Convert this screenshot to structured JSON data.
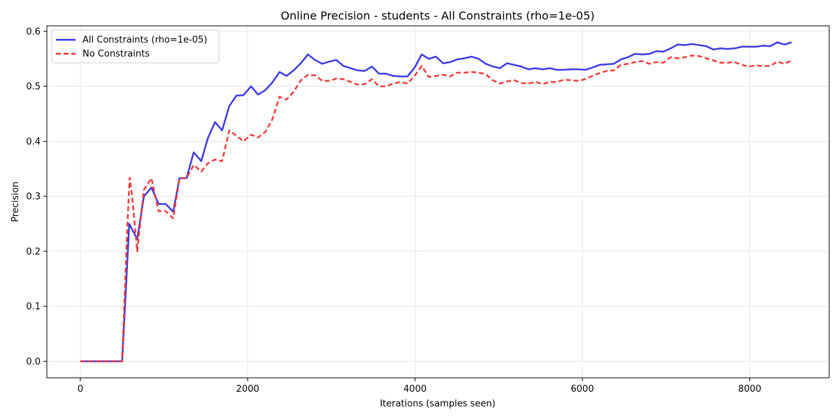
{
  "chart_data": {
    "type": "line",
    "title": "Online Precision - students - All Constraints (rho=1e-05)",
    "xlabel": "Iterations (samples seen)",
    "ylabel": "Precision",
    "xlim": [
      -400,
      8950
    ],
    "ylim": [
      -0.03,
      0.61
    ],
    "xticks": [
      0,
      2000,
      4000,
      6000,
      8000
    ],
    "yticks": [
      0.0,
      0.1,
      0.2,
      0.3,
      0.4,
      0.5,
      0.6
    ],
    "xtick_labels": [
      "0",
      "2000",
      "4000",
      "6000",
      "8000"
    ],
    "ytick_labels": [
      "0.0",
      "0.1",
      "0.2",
      "0.3",
      "0.4",
      "0.5",
      "0.6"
    ],
    "grid": true,
    "legend_position": "top-left",
    "series": [
      {
        "name": "All Constraints (rho=1e-05)",
        "color": "#3333dd",
        "style": "solid",
        "points": [
          [
            0,
            0
          ],
          [
            100,
            0
          ],
          [
            200,
            0
          ],
          [
            300,
            0
          ],
          [
            400,
            0
          ],
          [
            500,
            0
          ],
          [
            585,
            0.25
          ],
          [
            680,
            0.222
          ],
          [
            760,
            0.3
          ],
          [
            850,
            0.316
          ],
          [
            935,
            0.286
          ],
          [
            1020,
            0.286
          ],
          [
            1110,
            0.272
          ],
          [
            1185,
            0.333
          ],
          [
            1270,
            0.333
          ],
          [
            1355,
            0.38
          ],
          [
            1445,
            0.364
          ],
          [
            1525,
            0.406
          ],
          [
            1610,
            0.435
          ],
          [
            1695,
            0.42
          ],
          [
            1780,
            0.464
          ],
          [
            1865,
            0.483
          ],
          [
            1950,
            0.484
          ],
          [
            2040,
            0.5
          ],
          [
            2125,
            0.485
          ],
          [
            2210,
            0.493
          ],
          [
            2295,
            0.507
          ],
          [
            2380,
            0.526
          ],
          [
            2465,
            0.519
          ],
          [
            2550,
            0.529
          ],
          [
            2635,
            0.542
          ],
          [
            2720,
            0.558
          ],
          [
            2805,
            0.548
          ],
          [
            2890,
            0.541
          ],
          [
            2975,
            0.545
          ],
          [
            3060,
            0.548
          ],
          [
            3145,
            0.537
          ],
          [
            3230,
            0.533
          ],
          [
            3315,
            0.529
          ],
          [
            3400,
            0.528
          ],
          [
            3485,
            0.536
          ],
          [
            3570,
            0.523
          ],
          [
            3655,
            0.523
          ],
          [
            3740,
            0.519
          ],
          [
            3825,
            0.518
          ],
          [
            3910,
            0.518
          ],
          [
            3995,
            0.534
          ],
          [
            4080,
            0.558
          ],
          [
            4165,
            0.55
          ],
          [
            4250,
            0.554
          ],
          [
            4335,
            0.542
          ],
          [
            4420,
            0.544
          ],
          [
            4505,
            0.549
          ],
          [
            4590,
            0.551
          ],
          [
            4675,
            0.554
          ],
          [
            4760,
            0.55
          ],
          [
            4845,
            0.541
          ],
          [
            4930,
            0.536
          ],
          [
            5015,
            0.533
          ],
          [
            5100,
            0.542
          ],
          [
            5185,
            0.539
          ],
          [
            5270,
            0.536
          ],
          [
            5355,
            0.531
          ],
          [
            5440,
            0.533
          ],
          [
            5525,
            0.531
          ],
          [
            5610,
            0.533
          ],
          [
            5695,
            0.53
          ],
          [
            5780,
            0.53
          ],
          [
            5865,
            0.531
          ],
          [
            5950,
            0.531
          ],
          [
            6035,
            0.53
          ],
          [
            6120,
            0.534
          ],
          [
            6205,
            0.539
          ],
          [
            6290,
            0.54
          ],
          [
            6375,
            0.541
          ],
          [
            6460,
            0.549
          ],
          [
            6545,
            0.553
          ],
          [
            6630,
            0.559
          ],
          [
            6715,
            0.558
          ],
          [
            6800,
            0.559
          ],
          [
            6885,
            0.564
          ],
          [
            6970,
            0.563
          ],
          [
            7055,
            0.569
          ],
          [
            7140,
            0.576
          ],
          [
            7225,
            0.575
          ],
          [
            7310,
            0.577
          ],
          [
            7395,
            0.575
          ],
          [
            7480,
            0.573
          ],
          [
            7565,
            0.567
          ],
          [
            7650,
            0.569
          ],
          [
            7735,
            0.568
          ],
          [
            7820,
            0.569
          ],
          [
            7905,
            0.572
          ],
          [
            7990,
            0.572
          ],
          [
            8075,
            0.572
          ],
          [
            8160,
            0.574
          ],
          [
            8245,
            0.573
          ],
          [
            8330,
            0.58
          ],
          [
            8415,
            0.576
          ],
          [
            8500,
            0.58
          ]
        ]
      },
      {
        "name": "No Constraints",
        "color": "#ee3333",
        "style": "dashed",
        "points": [
          [
            0,
            0
          ],
          [
            100,
            0
          ],
          [
            200,
            0
          ],
          [
            300,
            0
          ],
          [
            400,
            0
          ],
          [
            500,
            0
          ],
          [
            560,
            0.24
          ],
          [
            590,
            0.334
          ],
          [
            620,
            0.3
          ],
          [
            680,
            0.2
          ],
          [
            760,
            0.312
          ],
          [
            850,
            0.333
          ],
          [
            935,
            0.273
          ],
          [
            1020,
            0.273
          ],
          [
            1110,
            0.26
          ],
          [
            1185,
            0.333
          ],
          [
            1270,
            0.333
          ],
          [
            1355,
            0.357
          ],
          [
            1445,
            0.345
          ],
          [
            1525,
            0.36
          ],
          [
            1610,
            0.367
          ],
          [
            1695,
            0.364
          ],
          [
            1780,
            0.42
          ],
          [
            1865,
            0.41
          ],
          [
            1950,
            0.4
          ],
          [
            2040,
            0.412
          ],
          [
            2125,
            0.407
          ],
          [
            2210,
            0.417
          ],
          [
            2295,
            0.44
          ],
          [
            2380,
            0.481
          ],
          [
            2465,
            0.476
          ],
          [
            2550,
            0.49
          ],
          [
            2635,
            0.511
          ],
          [
            2720,
            0.521
          ],
          [
            2805,
            0.52
          ],
          [
            2890,
            0.51
          ],
          [
            2975,
            0.51
          ],
          [
            3060,
            0.514
          ],
          [
            3145,
            0.513
          ],
          [
            3230,
            0.508
          ],
          [
            3315,
            0.503
          ],
          [
            3400,
            0.504
          ],
          [
            3485,
            0.513
          ],
          [
            3570,
            0.5
          ],
          [
            3655,
            0.5
          ],
          [
            3740,
            0.505
          ],
          [
            3825,
            0.508
          ],
          [
            3910,
            0.505
          ],
          [
            3995,
            0.519
          ],
          [
            4080,
            0.537
          ],
          [
            4165,
            0.517
          ],
          [
            4250,
            0.519
          ],
          [
            4335,
            0.521
          ],
          [
            4420,
            0.518
          ],
          [
            4505,
            0.525
          ],
          [
            4590,
            0.525
          ],
          [
            4675,
            0.526
          ],
          [
            4760,
            0.525
          ],
          [
            4845,
            0.522
          ],
          [
            4930,
            0.511
          ],
          [
            5015,
            0.505
          ],
          [
            5100,
            0.509
          ],
          [
            5185,
            0.511
          ],
          [
            5270,
            0.506
          ],
          [
            5355,
            0.505
          ],
          [
            5440,
            0.508
          ],
          [
            5525,
            0.504
          ],
          [
            5610,
            0.508
          ],
          [
            5695,
            0.508
          ],
          [
            5780,
            0.512
          ],
          [
            5865,
            0.511
          ],
          [
            5950,
            0.51
          ],
          [
            6035,
            0.513
          ],
          [
            6120,
            0.519
          ],
          [
            6205,
            0.524
          ],
          [
            6290,
            0.528
          ],
          [
            6375,
            0.529
          ],
          [
            6460,
            0.539
          ],
          [
            6545,
            0.541
          ],
          [
            6630,
            0.544
          ],
          [
            6715,
            0.546
          ],
          [
            6800,
            0.541
          ],
          [
            6885,
            0.544
          ],
          [
            6970,
            0.543
          ],
          [
            7055,
            0.553
          ],
          [
            7140,
            0.551
          ],
          [
            7225,
            0.553
          ],
          [
            7310,
            0.556
          ],
          [
            7395,
            0.555
          ],
          [
            7480,
            0.551
          ],
          [
            7565,
            0.547
          ],
          [
            7650,
            0.543
          ],
          [
            7735,
            0.543
          ],
          [
            7820,
            0.544
          ],
          [
            7905,
            0.539
          ],
          [
            7990,
            0.536
          ],
          [
            8075,
            0.538
          ],
          [
            8160,
            0.537
          ],
          [
            8245,
            0.537
          ],
          [
            8330,
            0.545
          ],
          [
            8415,
            0.541
          ],
          [
            8500,
            0.547
          ]
        ]
      }
    ]
  }
}
